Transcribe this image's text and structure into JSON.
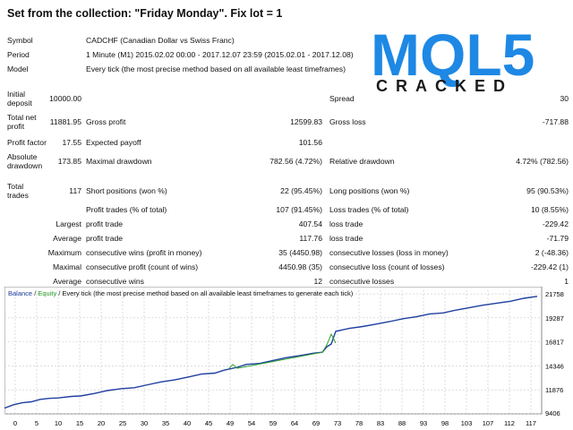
{
  "title": "Set from the collection: \"Friday Monday\".   Fix lot = 1",
  "logo": {
    "text_main": "MQL5",
    "text_sub": "CRACKED",
    "blue": "#1e88e5",
    "red": "#e53935"
  },
  "info": [
    {
      "label": "Symbol",
      "value": "CADCHF (Canadian Dollar vs Swiss Franc)"
    },
    {
      "label": "Period",
      "value": "1 Minute (M1) 2015.02.02 00:00 - 2017.12.07 23:59 (2015.02.01 - 2017.12.08)"
    },
    {
      "label": "Model",
      "value": "Every tick (the most precise method based on all available least timeframes)"
    }
  ],
  "stats": {
    "initial_deposit": {
      "label": "Initial deposit",
      "value": "10000.00"
    },
    "spread": {
      "label": "Spread",
      "value": "30"
    },
    "total_net_profit": {
      "label": "Total net profit",
      "value": "11881.95"
    },
    "gross_profit": {
      "label": "Gross profit",
      "value": "12599.83"
    },
    "gross_loss": {
      "label": "Gross loss",
      "value": "-717.88"
    },
    "profit_factor": {
      "label": "Profit factor",
      "value": "17.55"
    },
    "expected_payoff": {
      "label": "Expected payoff",
      "value": "101.56"
    },
    "absolute_drawdown": {
      "label": "Absolute drawdown",
      "value": "173.85"
    },
    "maximal_drawdown": {
      "label": "Maximal drawdown",
      "value": "782.56 (4.72%)"
    },
    "relative_drawdown": {
      "label": "Relative drawdown",
      "value": "4.72% (782.56)"
    },
    "total_trades": {
      "label": "Total trades",
      "value": "117"
    },
    "short_positions": {
      "label": "Short positions (won %)",
      "value": "22 (95.45%)"
    },
    "long_positions": {
      "label": "Long positions (won %)",
      "value": "95 (90.53%)"
    },
    "profit_trades": {
      "label": "Profit trades (% of total)",
      "value": "107 (91.45%)"
    },
    "loss_trades": {
      "label": "Loss trades (% of total)",
      "value": "10 (8.55%)"
    },
    "largest": {
      "label": "Largest",
      "profit_label": "profit trade",
      "profit_value": "407.54",
      "loss_label": "loss trade",
      "loss_value": "-229.42"
    },
    "average": {
      "label": "Average",
      "profit_label": "profit trade",
      "profit_value": "117.76",
      "loss_label": "loss trade",
      "loss_value": "-71.79"
    },
    "maximum": {
      "label": "Maximum",
      "wins_label": "consecutive wins (profit in money)",
      "wins_value": "35 (4450.98)",
      "losses_label": "consecutive losses (loss in money)",
      "losses_value": "2 (-48.36)"
    },
    "maximal": {
      "label": "Maximal",
      "profit_label": "consecutive profit (count of wins)",
      "profit_value": "4450.98 (35)",
      "loss_label": "consecutive loss (count of losses)",
      "loss_value": "-229.42 (1)"
    },
    "average_consec": {
      "label": "Average",
      "wins_label": "consecutive wins",
      "wins_value": "12",
      "losses_label": "consecutive losses",
      "losses_value": "1"
    }
  },
  "chart_data": {
    "type": "line",
    "legend": {
      "balance": "Balance",
      "sep1": " / ",
      "equity": "Equity",
      "sep2": " / ",
      "model": "Every tick (the most precise method based on all available least timeframes to generate each tick)"
    },
    "colors": {
      "balance": "#1f3fa0",
      "equity": "#2ca02c",
      "grid": "#c8c8c8",
      "border": "#8a8a8a"
    },
    "grid": true,
    "xlim": [
      0,
      120
    ],
    "ylim": [
      9406,
      22500
    ],
    "x_ticks": [
      "0",
      "5",
      "10",
      "15",
      "20",
      "25",
      "30",
      "35",
      "40",
      "45",
      "49",
      "54",
      "59",
      "64",
      "69",
      "73",
      "78",
      "83",
      "88",
      "93",
      "98",
      "103",
      "107",
      "112",
      "117"
    ],
    "y_ticks": [
      "21758",
      "19287",
      "16817",
      "14346",
      "11876",
      "9406"
    ],
    "y_tick_values": [
      21758,
      19287,
      16817,
      14346,
      11876,
      9406
    ],
    "series": [
      {
        "name": "Balance",
        "x": [
          0,
          2,
          4,
          6,
          8,
          10,
          12,
          15,
          17,
          20,
          23,
          26,
          29,
          32,
          35,
          38,
          41,
          44,
          47,
          49,
          50,
          52,
          54,
          57,
          60,
          63,
          66,
          69,
          71,
          72,
          73,
          74,
          77,
          80,
          83,
          86,
          89,
          92,
          95,
          98,
          101,
          104,
          107,
          110,
          113,
          116,
          119
        ],
        "y": [
          10000,
          10350,
          10550,
          10650,
          10900,
          11000,
          11050,
          11200,
          11250,
          11500,
          11800,
          12000,
          12100,
          12400,
          12700,
          12900,
          13200,
          13500,
          13600,
          13900,
          14000,
          14200,
          14500,
          14600,
          14900,
          15200,
          15400,
          15650,
          15750,
          16300,
          16600,
          17900,
          18200,
          18400,
          18650,
          18900,
          19200,
          19400,
          19700,
          19800,
          20100,
          20350,
          20600,
          20800,
          21000,
          21300,
          21500
        ]
      },
      {
        "name": "Equity",
        "x": [
          50,
          51,
          52,
          71,
          72,
          73,
          74
        ],
        "y": [
          14000,
          14500,
          14100,
          15750,
          16500,
          17600,
          16700
        ]
      }
    ]
  }
}
